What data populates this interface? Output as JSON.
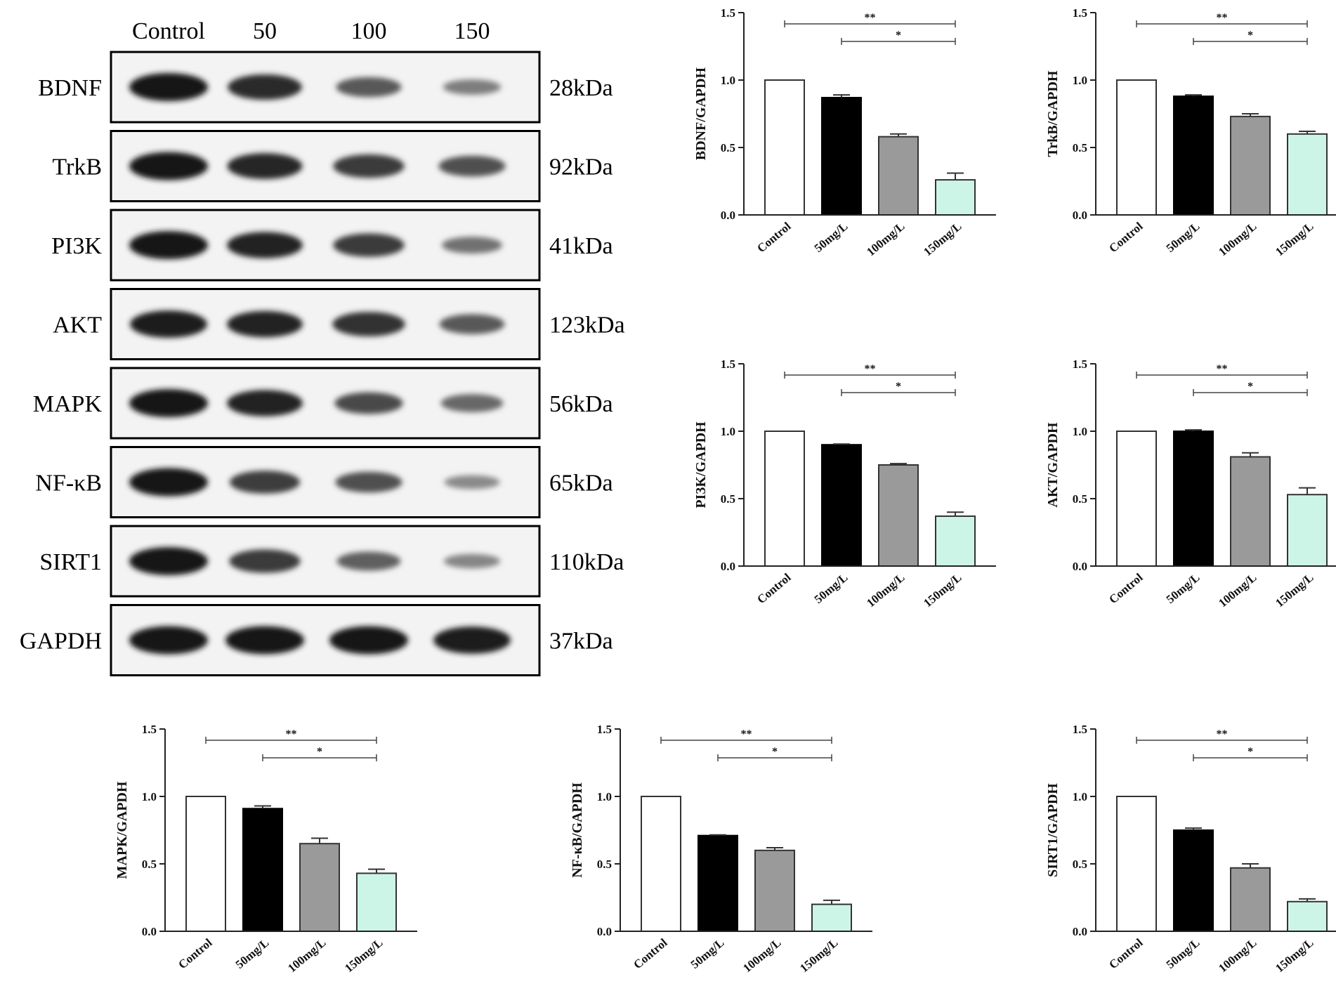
{
  "blot": {
    "lane_labels": [
      "Control",
      "50",
      "100",
      "150"
    ],
    "proteins": [
      {
        "name": "BDNF",
        "kda": "28kDa",
        "intensity": [
          1.0,
          0.85,
          0.55,
          0.3
        ]
      },
      {
        "name": "TrkB",
        "kda": "92kDa",
        "intensity": [
          1.0,
          0.88,
          0.75,
          0.6
        ]
      },
      {
        "name": "PI3K",
        "kda": "41kDa",
        "intensity": [
          1.0,
          0.9,
          0.75,
          0.38
        ]
      },
      {
        "name": "AKT",
        "kda": "123kDa",
        "intensity": [
          0.95,
          0.9,
          0.8,
          0.55
        ]
      },
      {
        "name": "MAPK",
        "kda": "56kDa",
        "intensity": [
          1.0,
          0.9,
          0.65,
          0.45
        ]
      },
      {
        "name": "NF-κB",
        "kda": "65kDa",
        "intensity": [
          1.0,
          0.72,
          0.6,
          0.22
        ]
      },
      {
        "name": "SIRT1",
        "kda": "110kDa",
        "intensity": [
          1.0,
          0.75,
          0.5,
          0.25
        ]
      },
      {
        "name": "GAPDH",
        "kda": "37kDa",
        "intensity": [
          1.0,
          1.0,
          1.0,
          0.95
        ]
      }
    ]
  },
  "bar_colors": [
    "#ffffff",
    "#000000",
    "#9a9a9a",
    "#ccf5e7"
  ],
  "chart_data": [
    {
      "type": "bar",
      "ylabel": "BDNF/GAPDH",
      "categories": [
        "Control",
        "50mg/L",
        "100mg/L",
        "150mg/L"
      ],
      "values": [
        1.0,
        0.87,
        0.58,
        0.26
      ],
      "errors": [
        0,
        0.02,
        0.02,
        0.05
      ],
      "ylim": [
        0,
        1.5
      ],
      "yticks": [
        "0.0",
        "0.5",
        "1.0",
        "1.5"
      ],
      "significance": [
        {
          "from": 0,
          "to": 3,
          "label": "**"
        },
        {
          "from": 1,
          "to": 3,
          "label": "*"
        }
      ]
    },
    {
      "type": "bar",
      "ylabel": "TrkB/GAPDH",
      "categories": [
        "Control",
        "50mg/L",
        "100mg/L",
        "150mg/L"
      ],
      "values": [
        1.0,
        0.88,
        0.73,
        0.6
      ],
      "errors": [
        0,
        0.01,
        0.02,
        0.02
      ],
      "ylim": [
        0,
        1.5
      ],
      "yticks": [
        "0.0",
        "0.5",
        "1.0",
        "1.5"
      ],
      "significance": [
        {
          "from": 0,
          "to": 3,
          "label": "**"
        },
        {
          "from": 1,
          "to": 3,
          "label": "*"
        }
      ]
    },
    {
      "type": "bar",
      "ylabel": "PI3K/GAPDH",
      "categories": [
        "Control",
        "50mg/L",
        "100mg/L",
        "150mg/L"
      ],
      "values": [
        1.0,
        0.9,
        0.75,
        0.37
      ],
      "errors": [
        0,
        0.005,
        0.01,
        0.03
      ],
      "ylim": [
        0,
        1.5
      ],
      "yticks": [
        "0.0",
        "0.5",
        "1.0",
        "1.5"
      ],
      "significance": [
        {
          "from": 0,
          "to": 3,
          "label": "**"
        },
        {
          "from": 1,
          "to": 3,
          "label": "*"
        }
      ]
    },
    {
      "type": "bar",
      "ylabel": "AKT/GAPDH",
      "categories": [
        "Control",
        "50mg/L",
        "100mg/L",
        "150mg/L"
      ],
      "values": [
        1.0,
        1.0,
        0.81,
        0.53
      ],
      "errors": [
        0,
        0.01,
        0.03,
        0.05
      ],
      "ylim": [
        0,
        1.5
      ],
      "yticks": [
        "0.0",
        "0.5",
        "1.0",
        "1.5"
      ],
      "significance": [
        {
          "from": 0,
          "to": 3,
          "label": "**"
        },
        {
          "from": 1,
          "to": 3,
          "label": "*"
        }
      ]
    },
    {
      "type": "bar",
      "ylabel": "MAPK/GAPDH",
      "categories": [
        "Control",
        "50mg/L",
        "100mg/L",
        "150mg/L"
      ],
      "values": [
        1.0,
        0.91,
        0.65,
        0.43
      ],
      "errors": [
        0,
        0.02,
        0.04,
        0.03
      ],
      "ylim": [
        0,
        1.5
      ],
      "yticks": [
        "0.0",
        "0.5",
        "1.0",
        "1.5"
      ],
      "significance": [
        {
          "from": 0,
          "to": 3,
          "label": "**"
        },
        {
          "from": 1,
          "to": 3,
          "label": "*"
        }
      ]
    },
    {
      "type": "bar",
      "ylabel": "NF-κB/GAPDH",
      "categories": [
        "Control",
        "50mg/L",
        "100mg/L",
        "150mg/L"
      ],
      "values": [
        1.0,
        0.71,
        0.6,
        0.2
      ],
      "errors": [
        0,
        0.005,
        0.02,
        0.03
      ],
      "ylim": [
        0,
        1.5
      ],
      "yticks": [
        "0.0",
        "0.5",
        "1.0",
        "1.5"
      ],
      "significance": [
        {
          "from": 0,
          "to": 3,
          "label": "**"
        },
        {
          "from": 1,
          "to": 3,
          "label": "*"
        }
      ]
    },
    {
      "type": "bar",
      "ylabel": "SIRT1/GAPDH",
      "categories": [
        "Control",
        "50mg/L",
        "100mg/L",
        "150mg/L"
      ],
      "values": [
        1.0,
        0.75,
        0.47,
        0.22
      ],
      "errors": [
        0,
        0.015,
        0.03,
        0.02
      ],
      "ylim": [
        0,
        1.5
      ],
      "yticks": [
        "0.0",
        "0.5",
        "1.0",
        "1.5"
      ],
      "significance": [
        {
          "from": 0,
          "to": 3,
          "label": "**"
        },
        {
          "from": 1,
          "to": 3,
          "label": "*"
        }
      ]
    }
  ]
}
